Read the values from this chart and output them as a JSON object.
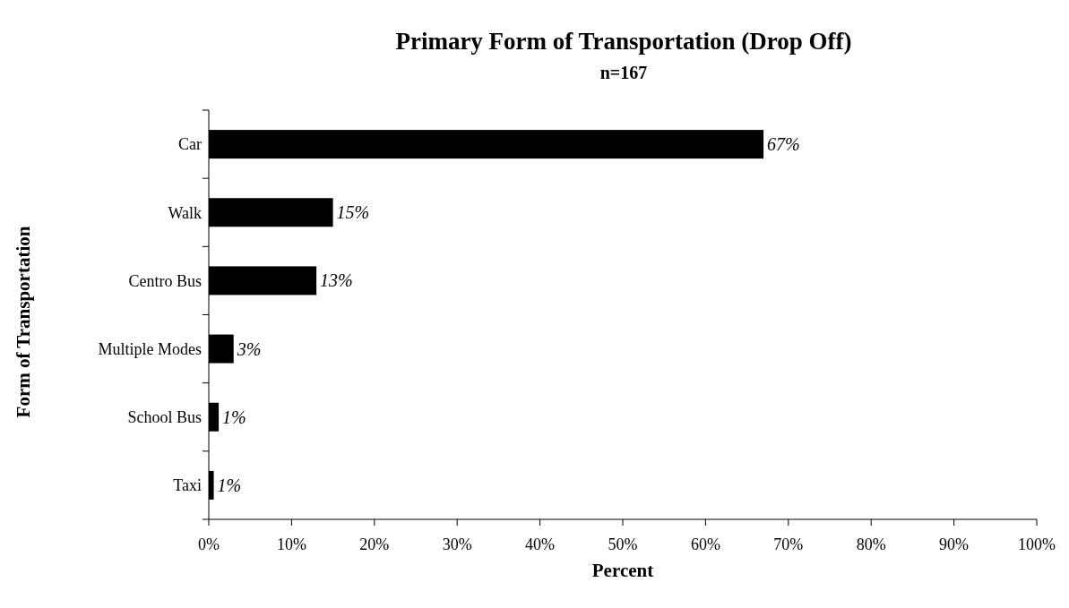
{
  "chart_data": {
    "type": "bar",
    "orientation": "horizontal",
    "title": "Primary Form of Transportation (Drop Off)",
    "subtitle": "n=167",
    "xlabel": "Percent",
    "ylabel": "Form of Transportation",
    "categories": [
      "Car",
      "Walk",
      "Centro Bus",
      "Multiple Modes",
      "School Bus",
      "Taxi"
    ],
    "values": [
      67,
      15,
      13,
      3,
      1.2,
      0.6
    ],
    "value_labels": [
      "67%",
      "15%",
      "13%",
      "3%",
      "1%",
      "1%"
    ],
    "color": "#000000",
    "xlim": [
      0,
      100
    ],
    "xticks": [
      {
        "value": 0,
        "label": "0%"
      },
      {
        "value": 10,
        "label": "10%"
      },
      {
        "value": 20,
        "label": "20%"
      },
      {
        "value": 30,
        "label": "30%"
      },
      {
        "value": 40,
        "label": "40%"
      },
      {
        "value": 50,
        "label": "50%"
      },
      {
        "value": 60,
        "label": "60%"
      },
      {
        "value": 70,
        "label": "70%"
      },
      {
        "value": 80,
        "label": "80%"
      },
      {
        "value": 90,
        "label": "90%"
      },
      {
        "value": 100,
        "label": "100%"
      }
    ],
    "grid": false
  }
}
